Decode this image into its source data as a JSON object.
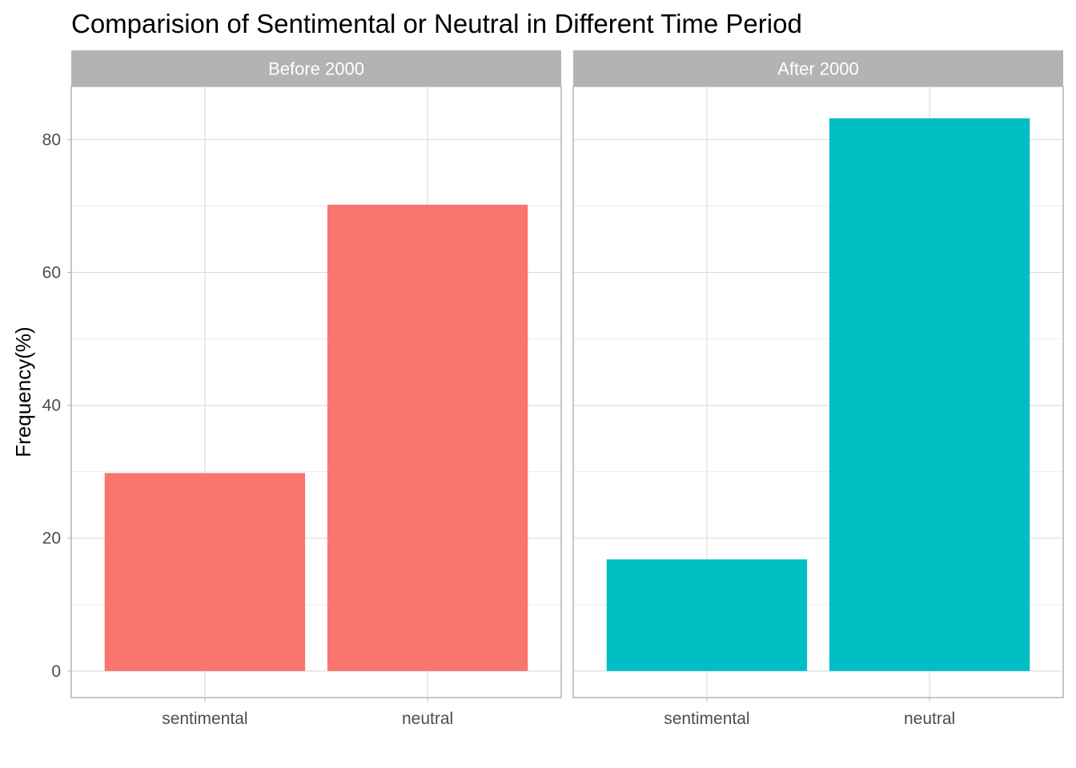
{
  "chart_data": {
    "type": "bar",
    "title": "Comparision of Sentimental or Neutral in Different Time Period",
    "xlabel": "",
    "ylabel": "Frequency(%)",
    "ylim": [
      -4,
      88
    ],
    "yticks": [
      0,
      20,
      40,
      60,
      80
    ],
    "yticks_labels": [
      "0",
      "20",
      "40",
      "60",
      "80"
    ],
    "categories": [
      "sentimental",
      "neutral"
    ],
    "grid": true,
    "legend": "none",
    "panels": [
      {
        "name": "Before 2000",
        "color": "#F8766D",
        "values": [
          29.8,
          70.2
        ]
      },
      {
        "name": "After 2000",
        "color": "#00BFC4",
        "values": [
          16.8,
          83.2
        ]
      }
    ]
  }
}
